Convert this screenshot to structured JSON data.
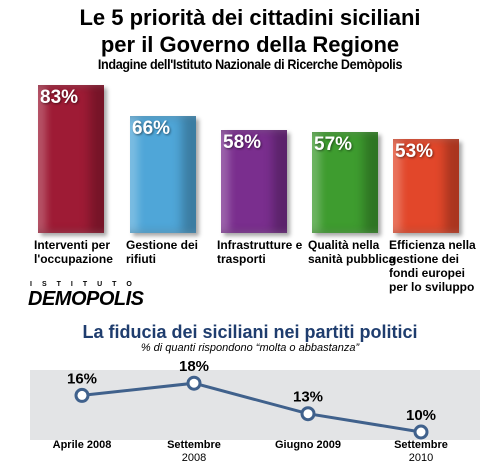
{
  "chart_data": [
    {
      "type": "bar",
      "title": "Le 5 priorità dei cittadini siciliani per il Governo della Regione",
      "subtitle": "Indagine dell'Istituto Nazionale di Ricerche Demòpolis",
      "categories": [
        "Interventi per l'occupazione",
        "Gestione dei rifiuti",
        "Infrastrutture e trasporti",
        "Qualità nella sanità pubblica",
        "Efficienza nella gestione dei fondi europei per lo sviluppo"
      ],
      "values": [
        83,
        66,
        58,
        57,
        53
      ],
      "value_labels": [
        "83%",
        "66%",
        "58%",
        "57%",
        "53%"
      ],
      "colors": [
        "#9e1b35",
        "#4fa6d8",
        "#7a2e8e",
        "#3e9c2f",
        "#e2472a"
      ]
    },
    {
      "type": "line",
      "title": "La fiducia dei siciliani nei partiti politici",
      "subtitle": "% di quanti rispondono “molta o abbastanza”",
      "categories": [
        "Aprile 2008",
        "Settembre 2008",
        "Giugno 2009",
        "Settembre 2010"
      ],
      "values": [
        16,
        18,
        13,
        10
      ],
      "value_labels": [
        "16%",
        "18%",
        "13%",
        "10%"
      ],
      "color": "#40618c"
    }
  ],
  "logo": {
    "top": "ISTITUTO",
    "name": "DEMOPOLIS"
  }
}
